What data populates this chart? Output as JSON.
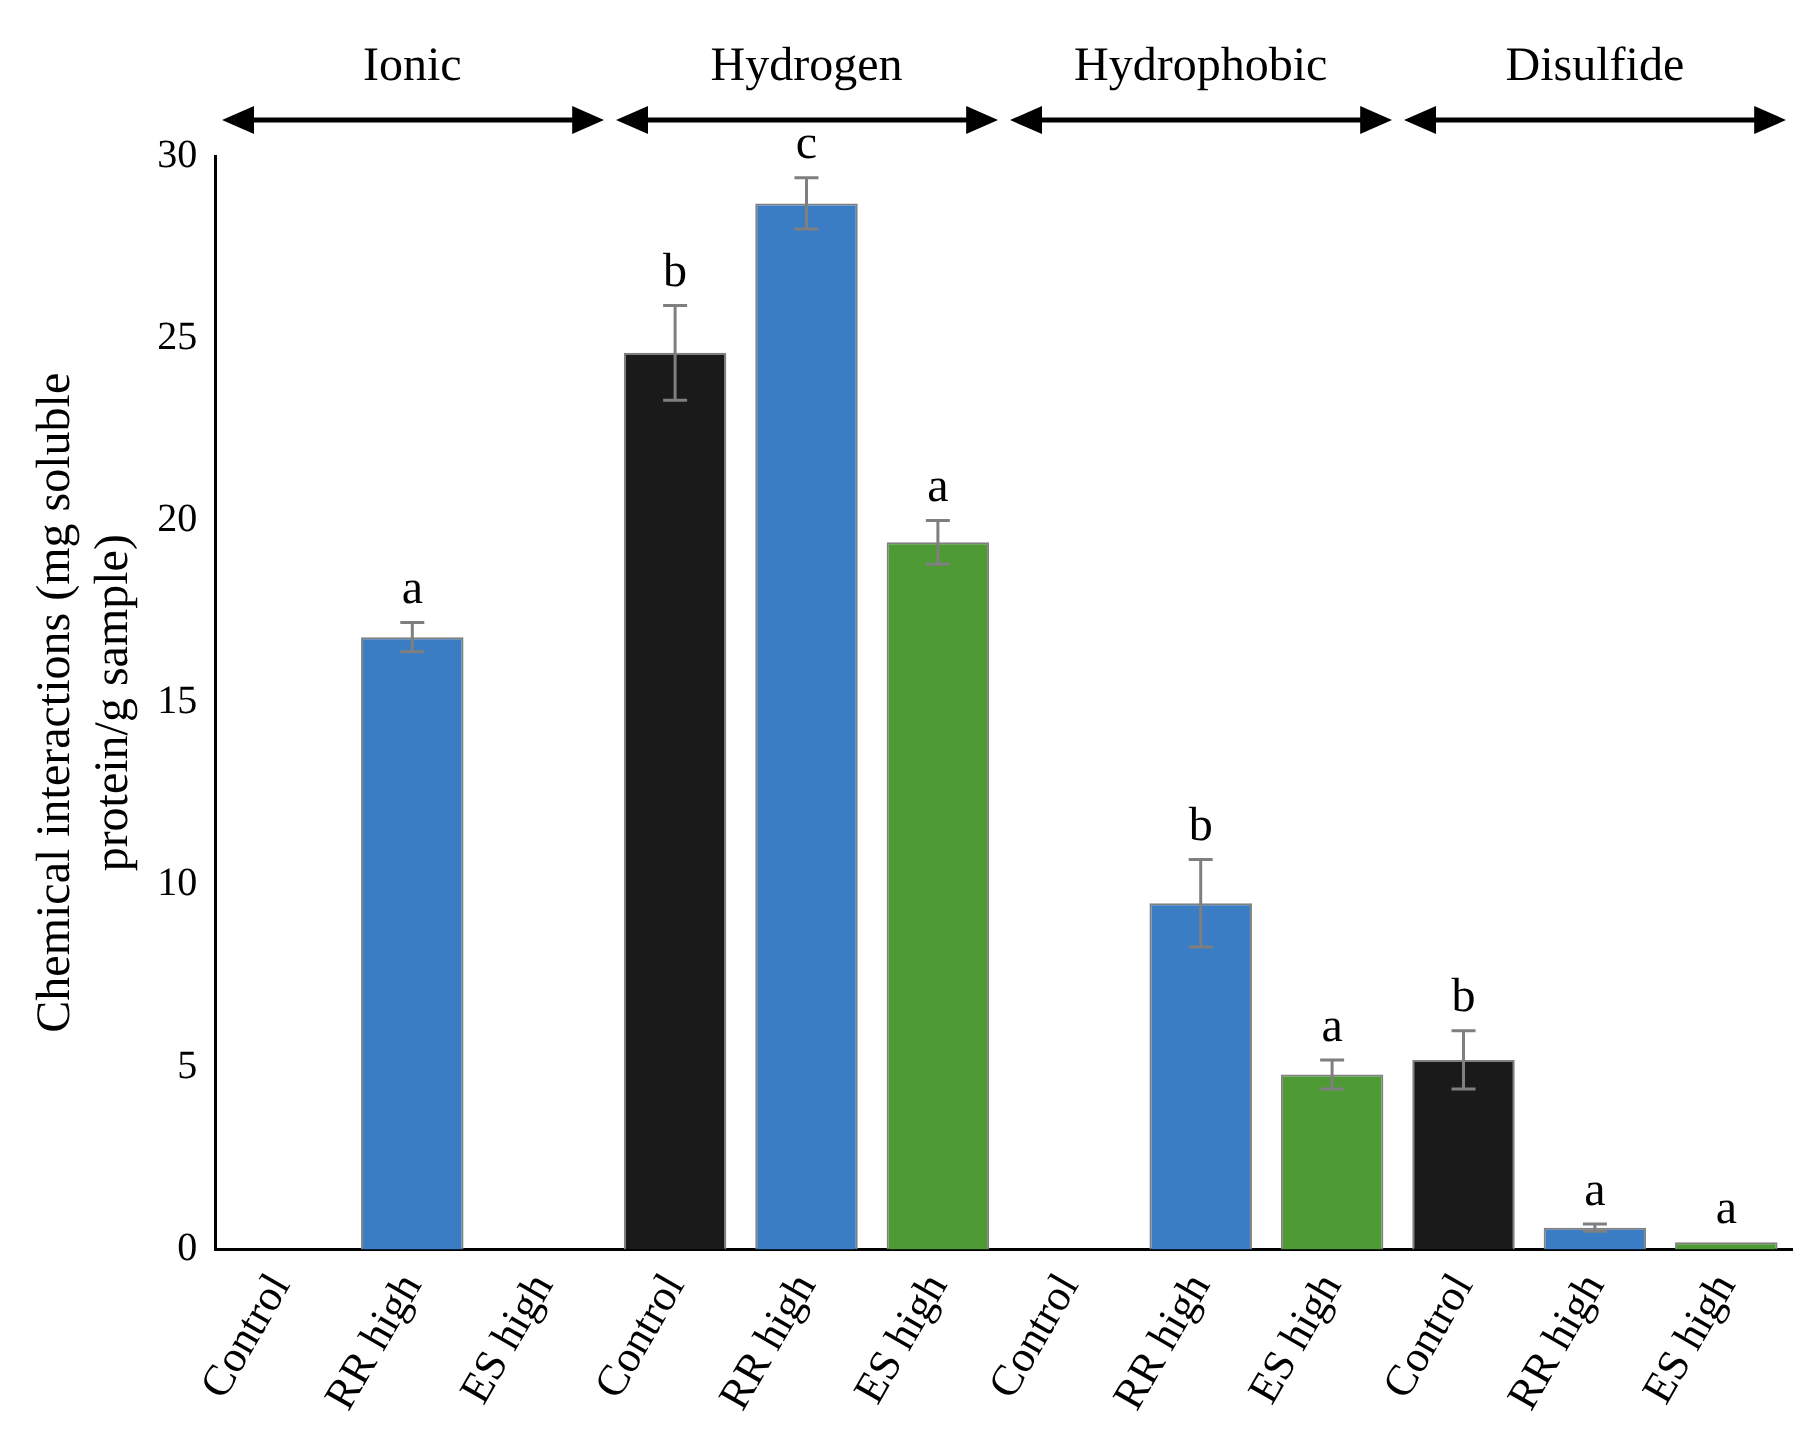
{
  "chart_data": {
    "type": "bar",
    "ylabel": "Chemical interactions (mg soluble protein/g sample)",
    "categories": [
      "Control",
      "RR high",
      "ES high",
      "Control",
      "RR high",
      "ES high",
      "Control",
      "RR high",
      "ES high",
      "Control",
      "RR high",
      "ES high"
    ],
    "values": [
      0,
      16.8,
      0,
      24.6,
      28.7,
      19.4,
      0,
      9.5,
      4.8,
      5.2,
      0.6,
      0.2
    ],
    "errors": [
      null,
      0.4,
      null,
      1.3,
      0.7,
      0.6,
      null,
      1.2,
      0.4,
      0.8,
      0.1,
      null
    ],
    "value_labels": [
      null,
      "a",
      null,
      "b",
      "c",
      "a",
      null,
      "b",
      "a",
      "b",
      "a",
      "a"
    ],
    "colors": [
      "#1a1a1a",
      "#3b7dc4",
      "#4e9a35",
      "#1a1a1a",
      "#3b7dc4",
      "#4e9a35",
      "#1a1a1a",
      "#3b7dc4",
      "#4e9a35",
      "#1a1a1a",
      "#3b7dc4",
      "#4e9a35"
    ],
    "annotations": [
      "Ionic",
      "Hydrogen",
      "Hydrophobic",
      "Disulfide"
    ],
    "ylim": [
      0,
      30
    ],
    "yticks": [
      0,
      5,
      10,
      15,
      20,
      25,
      30
    ],
    "grid": false,
    "legend": false
  }
}
